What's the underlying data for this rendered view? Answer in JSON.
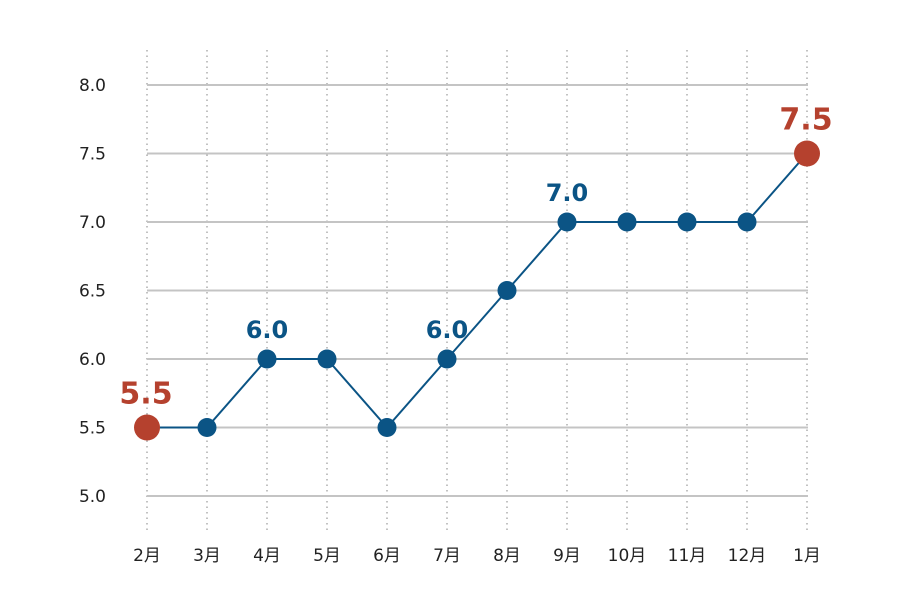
{
  "chart_data": {
    "type": "line",
    "categories": [
      "2月",
      "3月",
      "4月",
      "5月",
      "6月",
      "7月",
      "8月",
      "9月",
      "10月",
      "11月",
      "12月",
      "1月"
    ],
    "values": [
      5.5,
      5.5,
      6.0,
      6.0,
      5.5,
      6.0,
      6.5,
      7.0,
      7.0,
      7.0,
      7.0,
      7.5
    ],
    "y_ticks": [
      "5.0",
      "5.5",
      "6.0",
      "6.5",
      "7.0",
      "7.5",
      "8.0"
    ],
    "ylim": [
      5.0,
      8.0
    ],
    "grid": {
      "horizontal": "solid",
      "vertical": "dotted"
    },
    "data_labels": [
      {
        "index": 0,
        "text": "5.5",
        "highlight": true
      },
      {
        "index": 2,
        "text": "6.0",
        "highlight": false
      },
      {
        "index": 5,
        "text": "6.0",
        "highlight": false
      },
      {
        "index": 7,
        "text": "7.0",
        "highlight": false
      },
      {
        "index": 11,
        "text": "7.5",
        "highlight": true
      }
    ],
    "title": "",
    "xlabel": "",
    "ylabel": ""
  },
  "colors": {
    "series": "#0b5485",
    "highlight": "#b5412e",
    "grid": "#c4c4c4",
    "text": "#222222"
  }
}
